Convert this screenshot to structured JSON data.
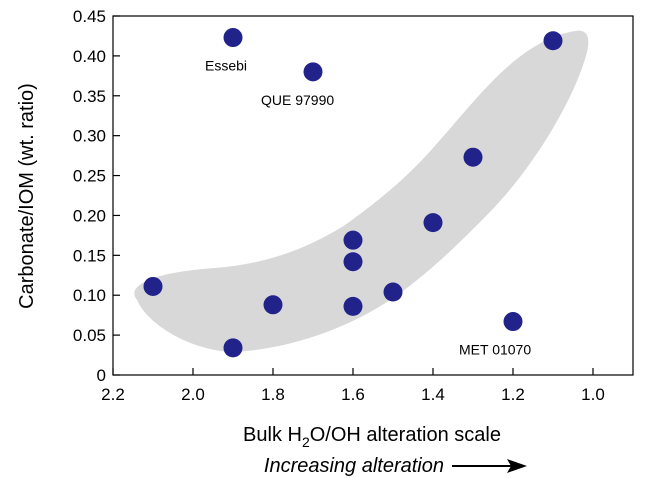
{
  "chart_data": {
    "type": "scatter",
    "xlabel_parts": [
      "Bulk H",
      "2",
      "O/OH alteration scale"
    ],
    "ylabel": "Carbonate/IOM (wt. ratio)",
    "arrow_label": "Increasing alteration",
    "xlim": [
      2.2,
      0.9
    ],
    "ylim": [
      0,
      0.45
    ],
    "x_reversed": true,
    "grid": false,
    "x_ticks": [
      2.2,
      2.0,
      1.8,
      1.6,
      1.4,
      1.2,
      1.0
    ],
    "x_tick_labels": [
      "2.2",
      "2.0",
      "1.8",
      "1.6",
      "1.4",
      "1.2",
      "1.0"
    ],
    "y_ticks": [
      0,
      0.05,
      0.1,
      0.15,
      0.2,
      0.25,
      0.3,
      0.35,
      0.4,
      0.45
    ],
    "y_tick_labels": [
      "0",
      "0.05",
      "0.10",
      "0.15",
      "0.20",
      "0.25",
      "0.30",
      "0.35",
      "0.40",
      "0.45"
    ],
    "point_color": "#22238a",
    "shade_color": "#d8d8d8",
    "points": [
      {
        "x": 2.1,
        "y": 0.111
      },
      {
        "x": 1.9,
        "y": 0.423,
        "label": "Essebi"
      },
      {
        "x": 1.9,
        "y": 0.034
      },
      {
        "x": 1.8,
        "y": 0.088
      },
      {
        "x": 1.7,
        "y": 0.38,
        "label": "QUE 97990"
      },
      {
        "x": 1.6,
        "y": 0.169
      },
      {
        "x": 1.6,
        "y": 0.142
      },
      {
        "x": 1.6,
        "y": 0.086
      },
      {
        "x": 1.5,
        "y": 0.104
      },
      {
        "x": 1.4,
        "y": 0.191
      },
      {
        "x": 1.3,
        "y": 0.273
      },
      {
        "x": 1.2,
        "y": 0.067,
        "label": "MET 01070"
      },
      {
        "x": 1.1,
        "y": 0.419
      }
    ]
  }
}
